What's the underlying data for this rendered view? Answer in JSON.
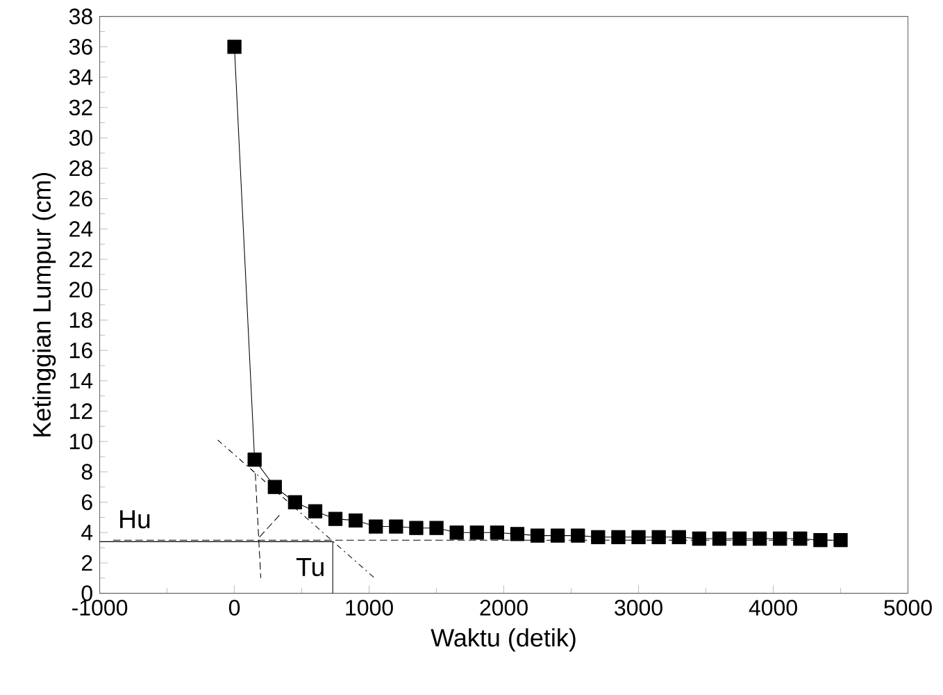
{
  "chart_data": {
    "type": "line",
    "xlabel": "Waktu (detik)",
    "ylabel": "Ketinggian Lumpur (cm)",
    "xlim": [
      -1000,
      5000
    ],
    "ylim": [
      0,
      38
    ],
    "xticks": [
      -1000,
      0,
      1000,
      2000,
      3000,
      4000,
      5000
    ],
    "yticks": [
      0,
      2,
      4,
      6,
      8,
      10,
      12,
      14,
      16,
      18,
      20,
      22,
      24,
      26,
      28,
      30,
      32,
      34,
      36,
      38
    ],
    "grid": false,
    "marker": "square",
    "line_style": "solid",
    "series": [
      {
        "color": "#000000",
        "x": [
          0,
          150,
          300,
          450,
          600,
          750,
          900,
          1050,
          1200,
          1350,
          1500,
          1650,
          1800,
          1950,
          2100,
          2250,
          2400,
          2550,
          2700,
          2850,
          3000,
          3150,
          3300,
          3450,
          3600,
          3750,
          3900,
          4050,
          4200,
          4350,
          4500
        ],
        "values": [
          36,
          8.8,
          7,
          6,
          5.4,
          4.9,
          4.8,
          4.4,
          4.4,
          4.3,
          4.3,
          4.0,
          4.0,
          4.0,
          3.9,
          3.8,
          3.8,
          3.8,
          3.7,
          3.7,
          3.7,
          3.7,
          3.7,
          3.6,
          3.6,
          3.6,
          3.6,
          3.6,
          3.6,
          3.5,
          3.5
        ]
      },
      {
        "color": "#000000",
        "marker": "none",
        "line_style": "dashed",
        "x": [
          -900,
          4500
        ],
        "values": [
          3.5,
          3.5
        ]
      },
      {
        "color": "#000000",
        "marker": "none",
        "line_style": "solid",
        "x": [
          -1000,
          730,
          730
        ],
        "values": [
          3.4,
          3.4,
          0
        ]
      },
      {
        "color": "#000000",
        "marker": "none",
        "line_style": "dashed",
        "x": [
          155,
          196
        ],
        "values": [
          7.9,
          1.0
        ]
      },
      {
        "color": "#000000",
        "marker": "none",
        "line_style": "dotted",
        "x": [
          -124,
          1041
        ],
        "values": [
          10.1,
          1.0
        ]
      },
      {
        "color": "#000000",
        "marker": "none",
        "line_style": "dashed",
        "x": [
          186,
          340
        ],
        "values": [
          3.7,
          5.2
        ]
      }
    ],
    "annotations": [
      "Hu",
      "Tu"
    ]
  }
}
